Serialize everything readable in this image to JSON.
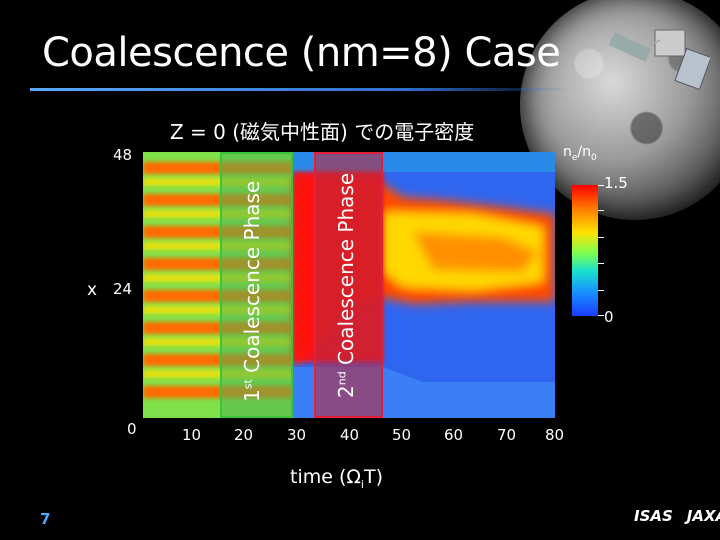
{
  "slide": {
    "title": "Coalescence (nm=8) Case",
    "subtitle": "Z = 0 (磁気中性面) での電子密度",
    "page_number": "7"
  },
  "plot": {
    "y_axis_label": "x",
    "y_ticks": [
      "48",
      "24",
      "0"
    ],
    "x_ticks": [
      "10",
      "20",
      "30",
      "40",
      "50",
      "60",
      "70",
      "80"
    ],
    "x_axis_label_main": "time (Ω",
    "x_axis_label_sub": "i",
    "x_axis_label_end": "T)"
  },
  "phases": {
    "first": {
      "sup": "st",
      "num": "1",
      "text": "Coalescence Phase"
    },
    "second": {
      "sup": "nd",
      "num": "2",
      "text": "Coalescence Phase"
    }
  },
  "colorbar": {
    "label_main": "n",
    "label_sub1": "e",
    "label_sep": "/n",
    "label_sub2": "0",
    "max": "1.5",
    "min": "0"
  },
  "logos": {
    "isas": "ISAS",
    "jaxa": "JAXA"
  }
}
